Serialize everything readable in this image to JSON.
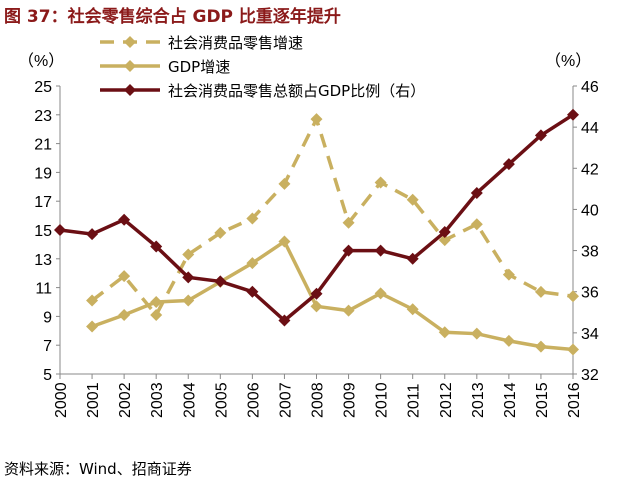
{
  "title": "图 37：社会零售综合占 GDP 比重逐年提升",
  "source": "资料来源：Wind、招商证券",
  "chart_data": {
    "type": "line",
    "categories": [
      "2000",
      "2001",
      "2002",
      "2003",
      "2004",
      "2005",
      "2006",
      "2007",
      "2008",
      "2009",
      "2010",
      "2011",
      "2012",
      "2013",
      "2014",
      "2015",
      "2016"
    ],
    "left_axis": {
      "label": "（%）",
      "ylim": [
        5,
        25
      ],
      "ticks": [
        5,
        7,
        9,
        11,
        13,
        15,
        17,
        19,
        21,
        23,
        25
      ]
    },
    "right_axis": {
      "label": "（%）",
      "ylim": [
        32,
        46
      ],
      "ticks": [
        32,
        34,
        36,
        38,
        40,
        42,
        44,
        46
      ]
    },
    "grid": false,
    "legend": "top",
    "series": [
      {
        "name": "社会消费品零售增速",
        "axis": "left",
        "style": "dashed",
        "color": "#c9b060",
        "values": [
          null,
          10.1,
          11.8,
          9.1,
          13.3,
          14.8,
          15.8,
          18.2,
          22.7,
          15.5,
          18.3,
          17.1,
          14.3,
          15.4,
          11.9,
          10.7,
          10.4
        ]
      },
      {
        "name": "GDP增速",
        "axis": "left",
        "style": "solid",
        "color": "#c9b060",
        "values": [
          null,
          8.3,
          9.1,
          10.0,
          10.1,
          11.4,
          12.7,
          14.2,
          9.7,
          9.4,
          10.6,
          9.5,
          7.9,
          7.8,
          7.3,
          6.9,
          6.7
        ]
      },
      {
        "name": "社会消费品零售总额占GDP比例（右）",
        "axis": "right",
        "style": "solid",
        "color": "#6b0f14",
        "values": [
          39.0,
          38.8,
          39.5,
          38.2,
          36.7,
          36.5,
          36.0,
          34.6,
          35.9,
          38.0,
          38.0,
          37.6,
          38.9,
          40.8,
          42.2,
          43.6,
          44.6
        ]
      }
    ]
  }
}
